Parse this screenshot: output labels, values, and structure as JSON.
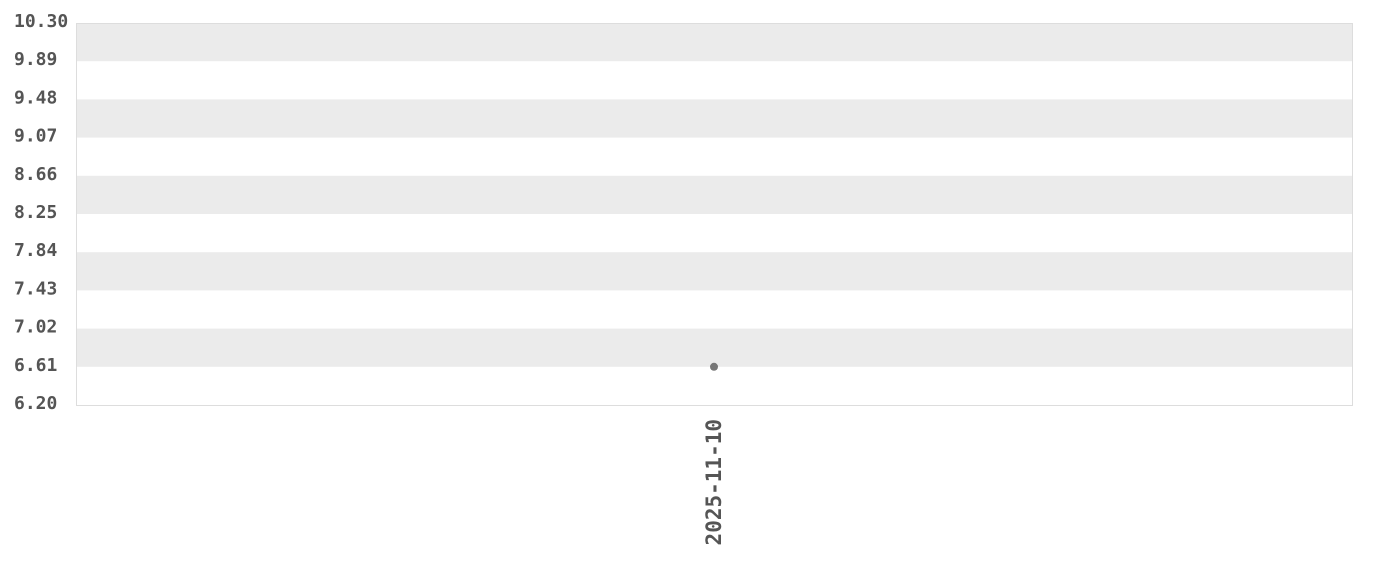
{
  "chart_data": {
    "type": "scatter",
    "title": "",
    "xlabel": "",
    "ylabel": "",
    "x_ticks": [
      "2025-11-10"
    ],
    "y_ticks": [
      "10.30",
      "9.89",
      "9.48",
      "9.07",
      "8.66",
      "8.25",
      "7.84",
      "7.43",
      "7.02",
      "6.61",
      "6.20"
    ],
    "ylim": [
      6.2,
      10.3
    ],
    "grid": "alternating horizontal bands",
    "series": [
      {
        "points": [
          {
            "x": "2025-11-10",
            "y": 6.61
          }
        ]
      }
    ],
    "colors": {
      "band": "#ebebeb",
      "point": "#777777",
      "text": "#555555",
      "border": "#dddddd"
    }
  }
}
